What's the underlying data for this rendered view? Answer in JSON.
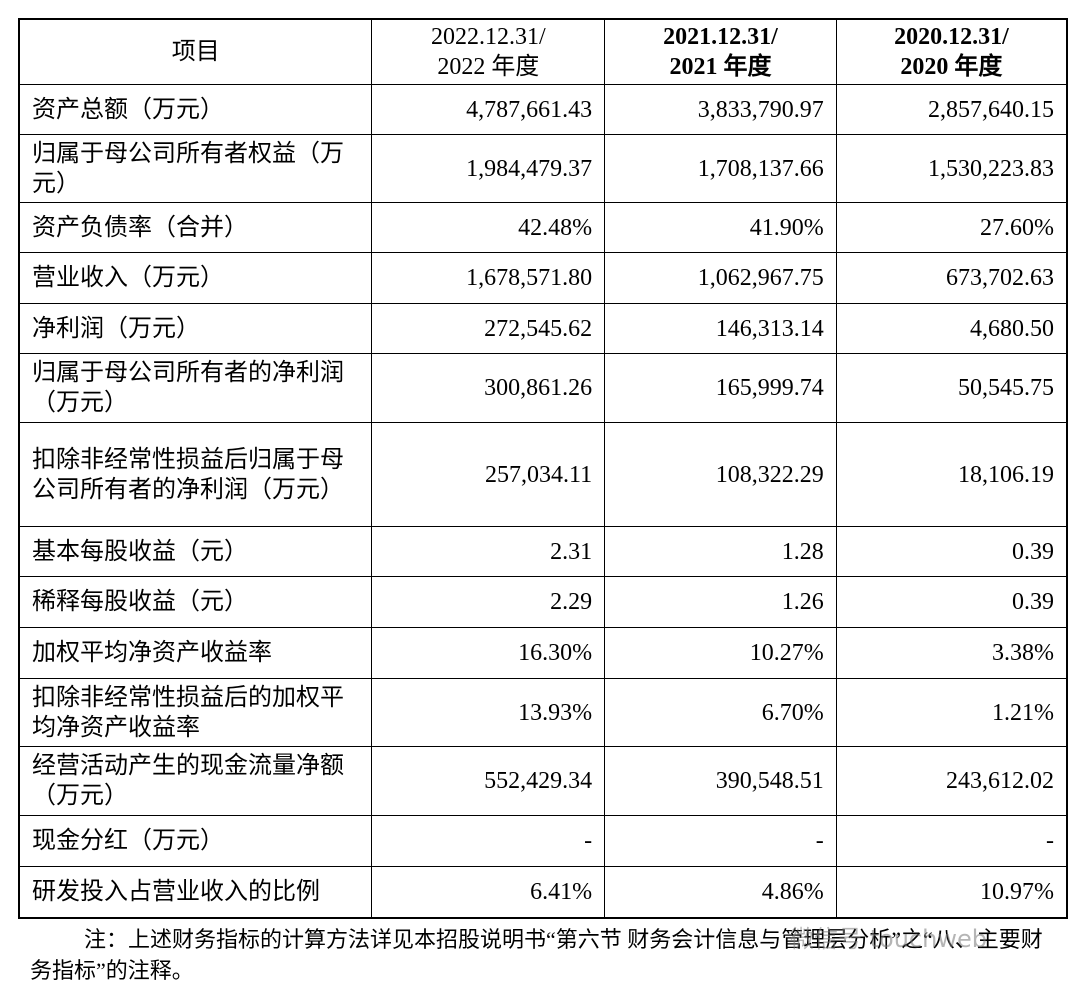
{
  "table": {
    "header": [
      [
        "项目"
      ],
      [
        "2022.12.31/",
        "2022 年度"
      ],
      [
        "2021.12.31/",
        "2021 年度"
      ],
      [
        "2020.12.31/",
        "2020 年度"
      ]
    ],
    "rows": [
      [
        "资产总额（万元）",
        "4,787,661.43",
        "3,833,790.97",
        "2,857,640.15"
      ],
      [
        "归属于母公司所有者权益（万元）",
        "1,984,479.37",
        "1,708,137.66",
        "1,530,223.83"
      ],
      [
        "资产负债率（合并）",
        "42.48%",
        "41.90%",
        "27.60%"
      ],
      [
        "营业收入（万元）",
        "1,678,571.80",
        "1,062,967.75",
        "673,702.63"
      ],
      [
        "净利润（万元）",
        "272,545.62",
        "146,313.14",
        "4,680.50"
      ],
      [
        "归属于母公司所有者的净利润（万元）",
        "300,861.26",
        "165,999.74",
        "50,545.75"
      ],
      [
        "扣除非经常性损益后归属于母公司所有者的净利润（万元）",
        "257,034.11",
        "108,322.29",
        "18,106.19"
      ],
      [
        "基本每股收益（元）",
        "2.31",
        "1.28",
        "0.39"
      ],
      [
        "稀释每股收益（元）",
        "2.29",
        "1.26",
        "0.39"
      ],
      [
        "加权平均净资产收益率",
        "16.30%",
        "10.27%",
        "3.38%"
      ],
      [
        "扣除非经常性损益后的加权平均净资产收益率",
        "13.93%",
        "6.70%",
        "1.21%"
      ],
      [
        "经营活动产生的现金流量净额（万元）",
        "552,429.34",
        "390,548.51",
        "243,612.02"
      ],
      [
        "现金分红（万元）",
        "-",
        "-",
        "-"
      ],
      [
        "研发投入占营业收入的比例",
        "6.41%",
        "4.86%",
        "10.97%"
      ]
    ]
  },
  "note": "注：上述财务指标的计算方法详见本招股说明书“第六节 财务会计信息与管理层分析”之“八、主要财务指标”的注释。",
  "watermark": "微信号 touchweb"
}
